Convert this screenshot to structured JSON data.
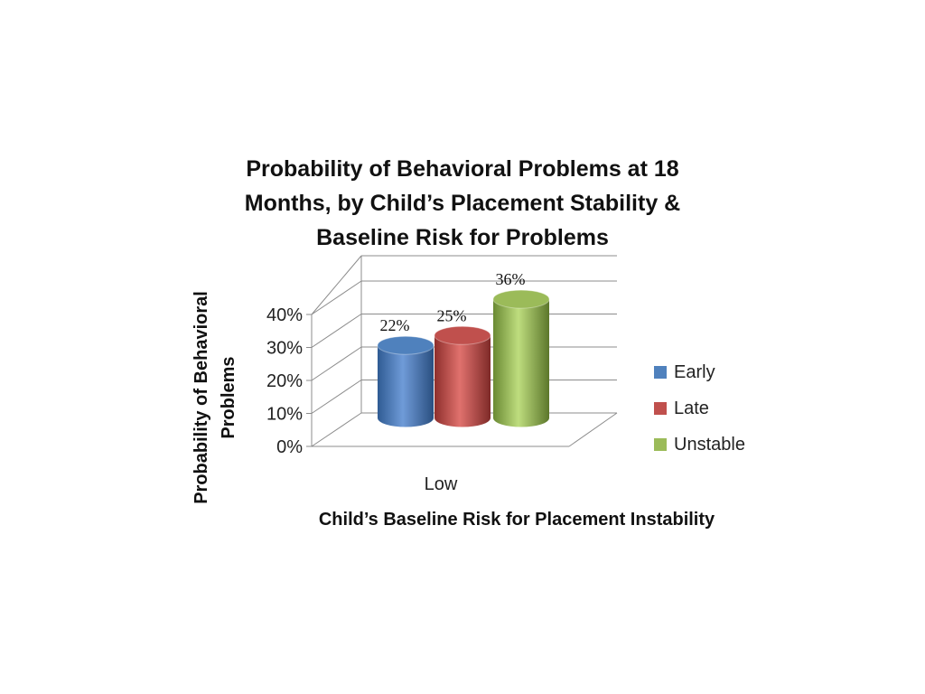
{
  "chart_data": {
    "type": "bar",
    "title_lines": [
      "Probability of Behavioral Problems at 18",
      "Months, by Child’s Placement Stability &",
      "Baseline Risk for Problems"
    ],
    "ylabel_lines": [
      "Probability of Behavioral",
      "Problems"
    ],
    "xlabel": "Child’s Baseline Risk for Placement Instability",
    "categories": [
      "Low"
    ],
    "series": [
      {
        "name": "Early",
        "values": [
          22
        ],
        "label": "22%",
        "color": "#4f81bd"
      },
      {
        "name": "Late",
        "values": [
          25
        ],
        "label": "25%",
        "color": "#c0504d"
      },
      {
        "name": "Unstable",
        "values": [
          36
        ],
        "label": "36%",
        "color": "#9bbb59"
      }
    ],
    "y_ticks": [
      "0%",
      "10%",
      "20%",
      "30%",
      "40%"
    ],
    "ylim": [
      0,
      40
    ],
    "grid": true,
    "legend_position": "right",
    "style": "3d-cylinder"
  }
}
